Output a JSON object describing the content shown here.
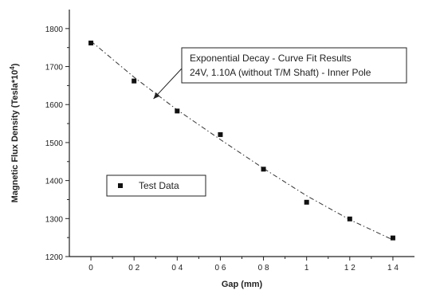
{
  "chart_data": {
    "type": "scatter",
    "xlabel": "Gap (mm)",
    "ylabel": "Magnetic Flux Density (Tesla*10⁴)",
    "xlim": [
      -0.1,
      1.5
    ],
    "ylim": [
      1200,
      1850
    ],
    "xticks": [
      0,
      0.2,
      0.4,
      0.6,
      0.8,
      1.0,
      1.2,
      1.4
    ],
    "xtick_labels": [
      "0",
      "0 2",
      "0 4",
      "0 6",
      "0 8",
      "1",
      "1 2",
      "1 4"
    ],
    "yticks": [
      1200,
      1300,
      1400,
      1500,
      1600,
      1700,
      1800
    ],
    "ytick_labels": [
      "1200",
      "1300",
      "1400",
      "1500",
      "1600",
      "1700",
      "1800"
    ],
    "grid": false,
    "series": [
      {
        "name": "Test Data",
        "marker": "square",
        "x": [
          0,
          0.2,
          0.4,
          0.6,
          0.8,
          1.0,
          1.2,
          1.4
        ],
        "y": [
          1762,
          1662,
          1583,
          1521,
          1430,
          1343,
          1299,
          1249
        ]
      }
    ],
    "fit_curve": {
      "style": "dash-dot",
      "x": [
        0,
        0.2,
        0.4,
        0.6,
        0.8,
        1.0,
        1.2,
        1.4
      ],
      "y": [
        1767,
        1672,
        1586,
        1508,
        1432,
        1360,
        1297,
        1244
      ]
    },
    "annotation": {
      "lines": [
        "Exponential Decay - Curve Fit Results",
        "24V, 1.10A (without T/M Shaft) - Inner Pole"
      ],
      "arrow_to": {
        "x": 0.29,
        "y": 1615
      }
    },
    "legend": {
      "placement": "lower-left",
      "label": "Test Data"
    },
    "colors": {
      "data": "#111111",
      "fit": "#333333",
      "axes": "#222222"
    }
  }
}
